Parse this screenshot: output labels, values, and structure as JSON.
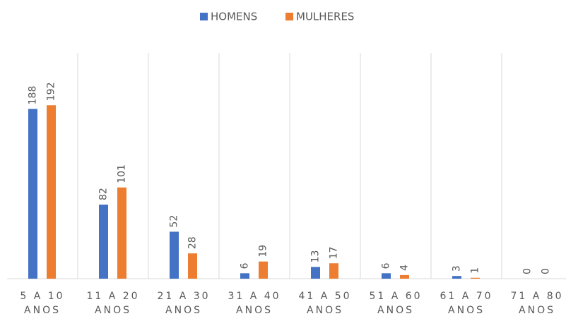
{
  "chart_data": {
    "type": "bar",
    "categories": [
      "5 A 10 ANOS",
      "11 A 20 ANOS",
      "21 A 30 ANOS",
      "31 A 40 ANOS",
      "41 A 50 ANOS",
      "51 A 60 ANOS",
      "61 A 70 ANOS",
      "71 A 80 ANOS"
    ],
    "series": [
      {
        "name": "HOMENS",
        "color": "#4472c4",
        "values": [
          188,
          82,
          52,
          6,
          13,
          6,
          3,
          0
        ]
      },
      {
        "name": "MULHERES",
        "color": "#ed7d31",
        "values": [
          192,
          101,
          28,
          19,
          17,
          4,
          1,
          0
        ]
      }
    ],
    "ylim": [
      0,
      250
    ],
    "legend": "top"
  }
}
